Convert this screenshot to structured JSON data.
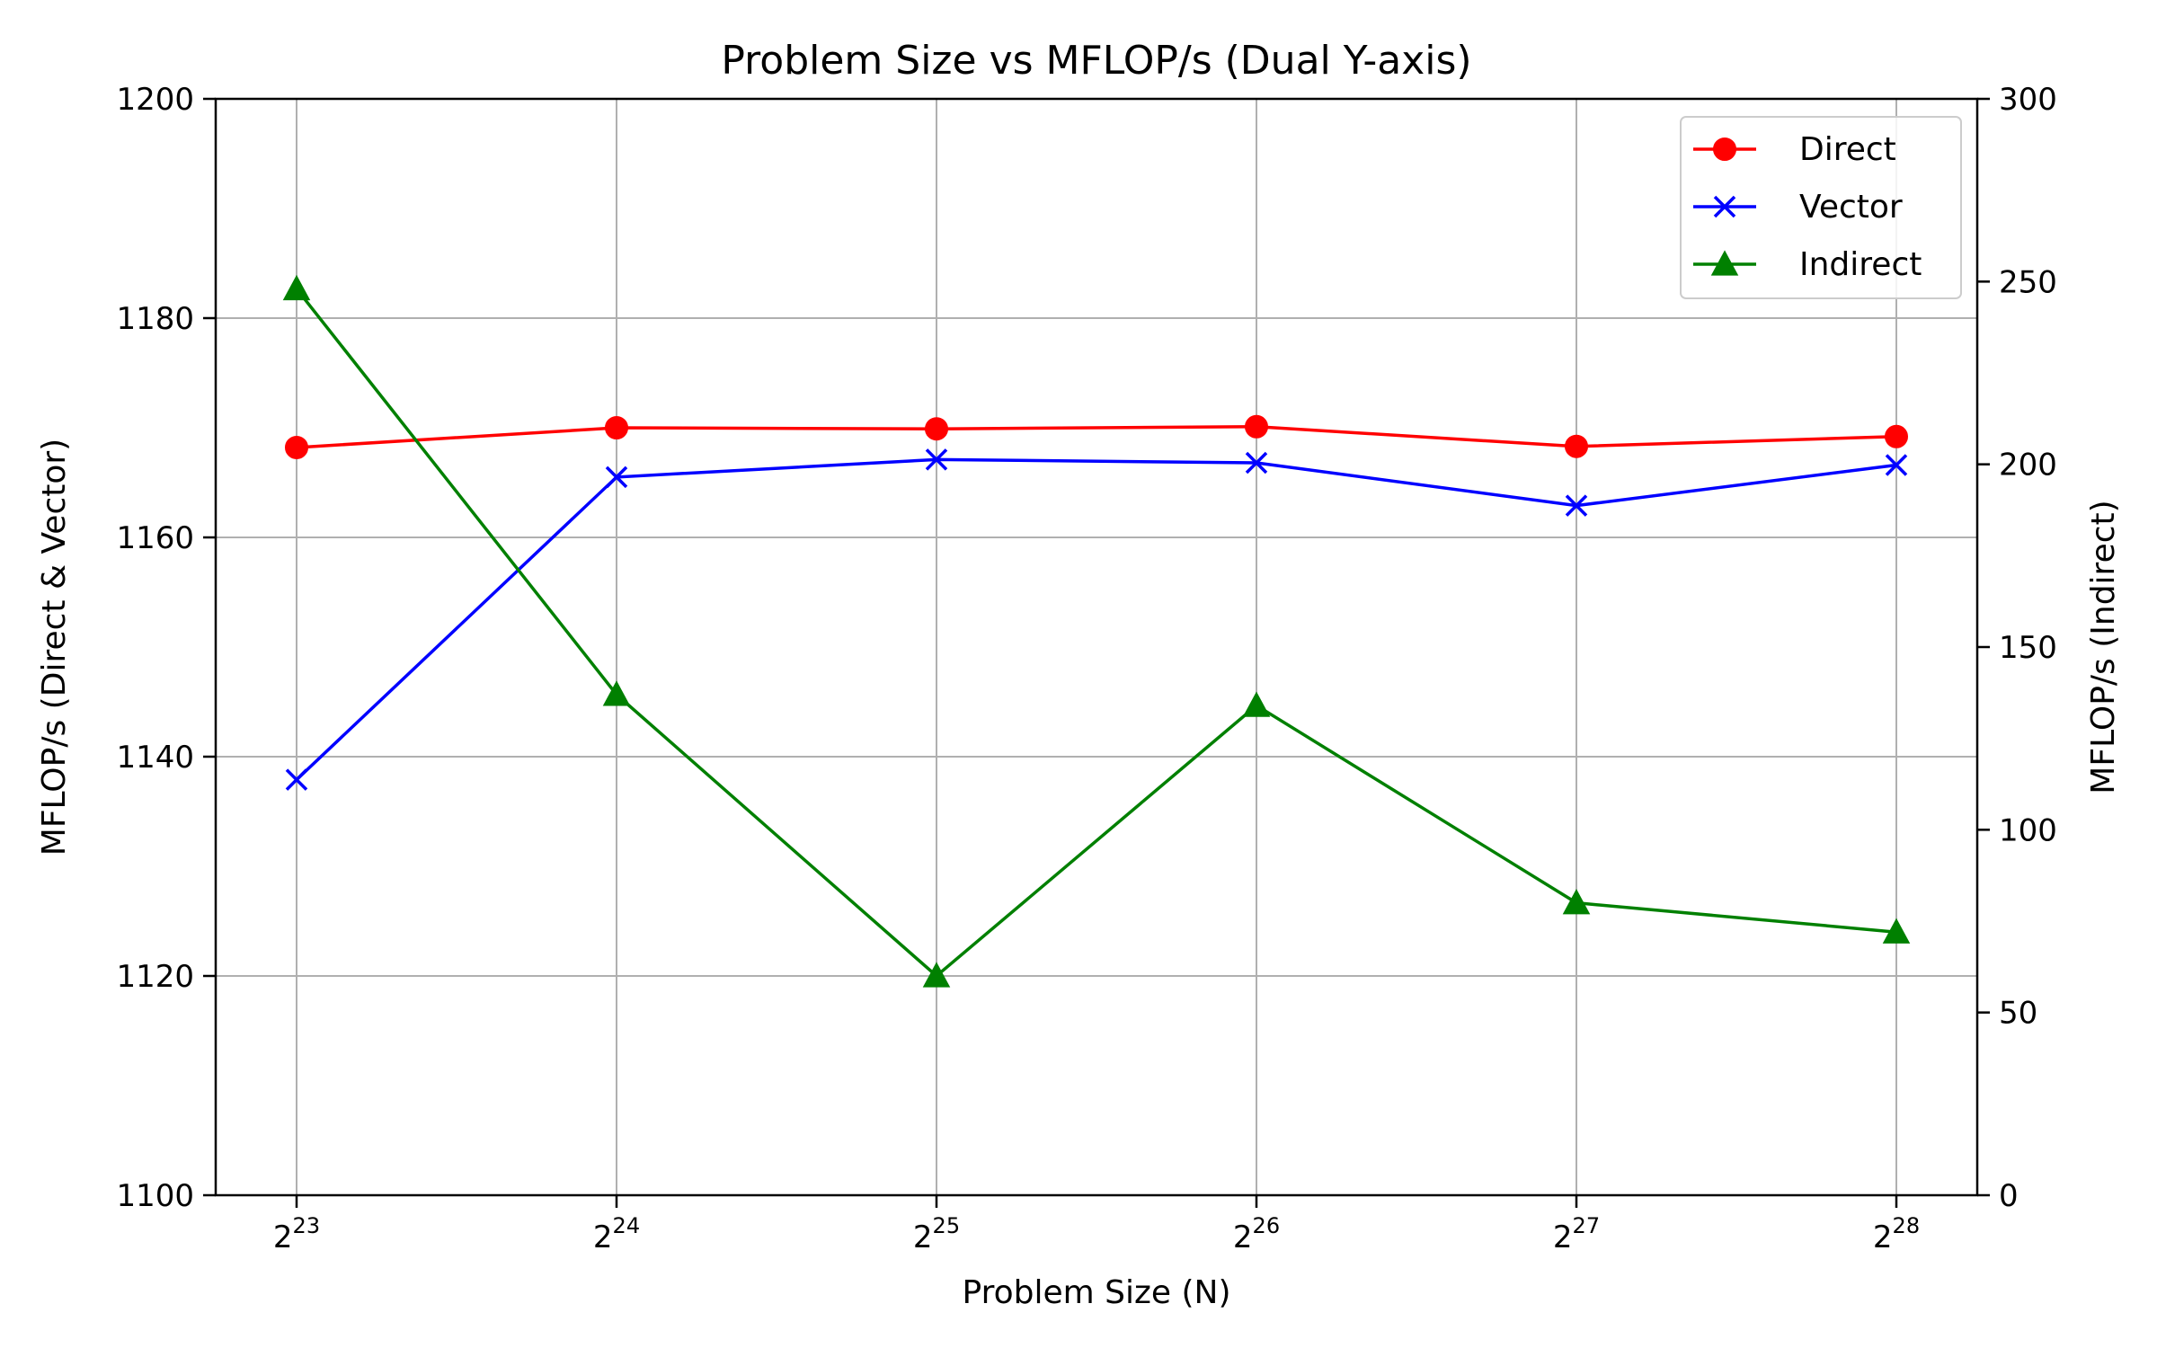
{
  "chart_data": {
    "type": "line",
    "title": "Problem Size vs MFLOP/s (Dual Y-axis)",
    "xlabel": "Problem Size (N)",
    "ylabel_left": "MFLOP/s (Direct & Vector)",
    "ylabel_right": "MFLOP/s (Indirect)",
    "x_exponents": [
      23,
      24,
      25,
      26,
      27,
      28
    ],
    "x_tick_base": "2",
    "ylim_left": [
      1100,
      1200
    ],
    "yticks_left": [
      1100,
      1120,
      1140,
      1160,
      1180,
      1200
    ],
    "ylim_right": [
      0,
      300
    ],
    "yticks_right": [
      0,
      50,
      100,
      150,
      200,
      250,
      300
    ],
    "grid": true,
    "legend_position": "top-right",
    "series": [
      {
        "name": "Direct",
        "axis": "left",
        "color": "#ff0000",
        "marker": "circle",
        "values": [
          1168.2,
          1170.0,
          1169.9,
          1170.1,
          1168.3,
          1169.2
        ]
      },
      {
        "name": "Vector",
        "axis": "left",
        "color": "#0000ff",
        "marker": "x",
        "values": [
          1137.9,
          1165.5,
          1167.1,
          1166.8,
          1162.9,
          1166.6
        ]
      },
      {
        "name": "Indirect",
        "axis": "right",
        "color": "#008000",
        "marker": "triangle",
        "values": [
          248,
          137,
          60,
          134,
          80,
          72
        ]
      }
    ]
  }
}
